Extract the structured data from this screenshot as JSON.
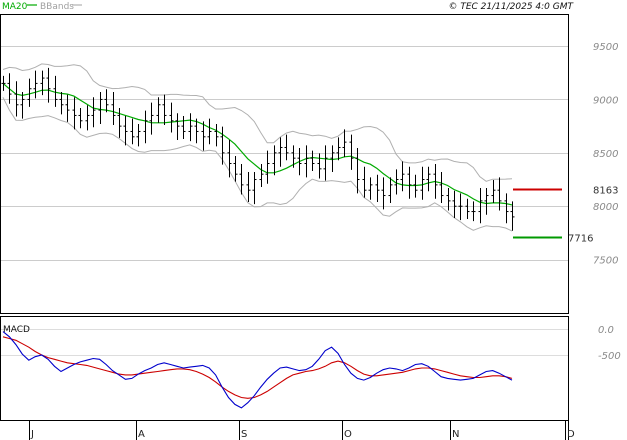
{
  "colors": {
    "ma20": "#00aa00",
    "bbands": "#b0b0b0",
    "price_bars": "#000000",
    "resistance": "#cc0000",
    "support": "#009900",
    "macd": "#0000cc",
    "signal": "#cc0000",
    "grid": "#cccccc"
  },
  "header": {
    "legend_ma20": "MA20",
    "legend_bbands": "BBands",
    "copyright": "© TEC 21/11/2025 4:0 GMT"
  },
  "chart_data": [
    {
      "type": "line",
      "title": "",
      "x_ticks": [
        "J",
        "A",
        "S",
        "O",
        "N",
        "D"
      ],
      "y_ticks": [
        "9500",
        "9000",
        "8500",
        "8000",
        "7500"
      ],
      "ylim": [
        7000,
        9800
      ],
      "grid": true,
      "legend_position": "top-left",
      "levels": [
        {
          "label": "8163",
          "value": 8163,
          "color": "#cc0000"
        },
        {
          "label": "7716",
          "value": 7716,
          "color": "#009900"
        }
      ],
      "series": [
        {
          "name": "",
          "values": [
            9150,
            9050,
            8950,
            9000,
            9100,
            9150,
            9200,
            9100,
            9000,
            8950,
            8900,
            8850,
            8800,
            8850,
            8900,
            9000,
            8950,
            8850,
            8750,
            8700,
            8650,
            8700,
            8800,
            8850,
            8950,
            8850,
            8800,
            8750,
            8700,
            8750,
            8700,
            8650,
            8700,
            8650,
            8500,
            8400,
            8300,
            8200,
            8150,
            8250,
            8300,
            8400,
            8500,
            8550,
            8500,
            8450,
            8400,
            8450,
            8400,
            8350,
            8450,
            8500,
            8550,
            8600,
            8450,
            8250,
            8150,
            8200,
            8150,
            8100,
            8200,
            8250,
            8300,
            8200,
            8150,
            8250,
            8300,
            8200,
            8100,
            8050,
            8000,
            8000,
            7950,
            7950,
            8050,
            8100,
            8150,
            8050,
            7950,
            7900
          ]
        }
      ]
    },
    {
      "type": "line",
      "title": "MACD",
      "y_ticks": [
        "0.0",
        "-500"
      ],
      "ylim": [
        -900,
        300
      ],
      "grid": true,
      "series": [
        {
          "name": "",
          "values": [
            120,
            60,
            -30,
            -140,
            -210,
            -170,
            -150,
            -200,
            -280,
            -340,
            -300,
            -260,
            -230,
            -210,
            -190,
            -200,
            -260,
            -330,
            -380,
            -430,
            -420,
            -370,
            -330,
            -300,
            -260,
            -240,
            -260,
            -280,
            -300,
            -290,
            -280,
            -270,
            -300,
            -380,
            -520,
            -640,
            -720,
            -760,
            -700,
            -620,
            -520,
            -430,
            -360,
            -300,
            -290,
            -310,
            -330,
            -320,
            -280,
            -200,
            -100,
            -60,
            -130,
            -260,
            -360,
            -420,
            -440,
            -410,
            -360,
            -320,
            -300,
            -310,
            -330,
            -300,
            -260,
            -250,
            -280,
            -340,
            -400,
            -420,
            -430,
            -440,
            -430,
            -420,
            -380,
            -340,
            -330,
            -360,
            -400,
            -440
          ]
        },
        {
          "name": "",
          "values": [
            60,
            40,
            20,
            -20,
            -60,
            -110,
            -150,
            -180,
            -200,
            -220,
            -240,
            -250,
            -260,
            -270,
            -290,
            -310,
            -330,
            -350,
            -370,
            -380,
            -380,
            -370,
            -360,
            -350,
            -340,
            -330,
            -320,
            -310,
            -310,
            -320,
            -340,
            -370,
            -410,
            -460,
            -520,
            -570,
            -610,
            -640,
            -650,
            -640,
            -610,
            -570,
            -520,
            -470,
            -420,
            -380,
            -360,
            -340,
            -330,
            -310,
            -280,
            -240,
            -220,
            -240,
            -280,
            -330,
            -370,
            -390,
            -390,
            -380,
            -370,
            -360,
            -350,
            -330,
            -310,
            -300,
            -300,
            -310,
            -330,
            -350,
            -370,
            -390,
            -400,
            -410,
            -410,
            -400,
            -390,
            -390,
            -400,
            -420
          ]
        }
      ]
    }
  ]
}
